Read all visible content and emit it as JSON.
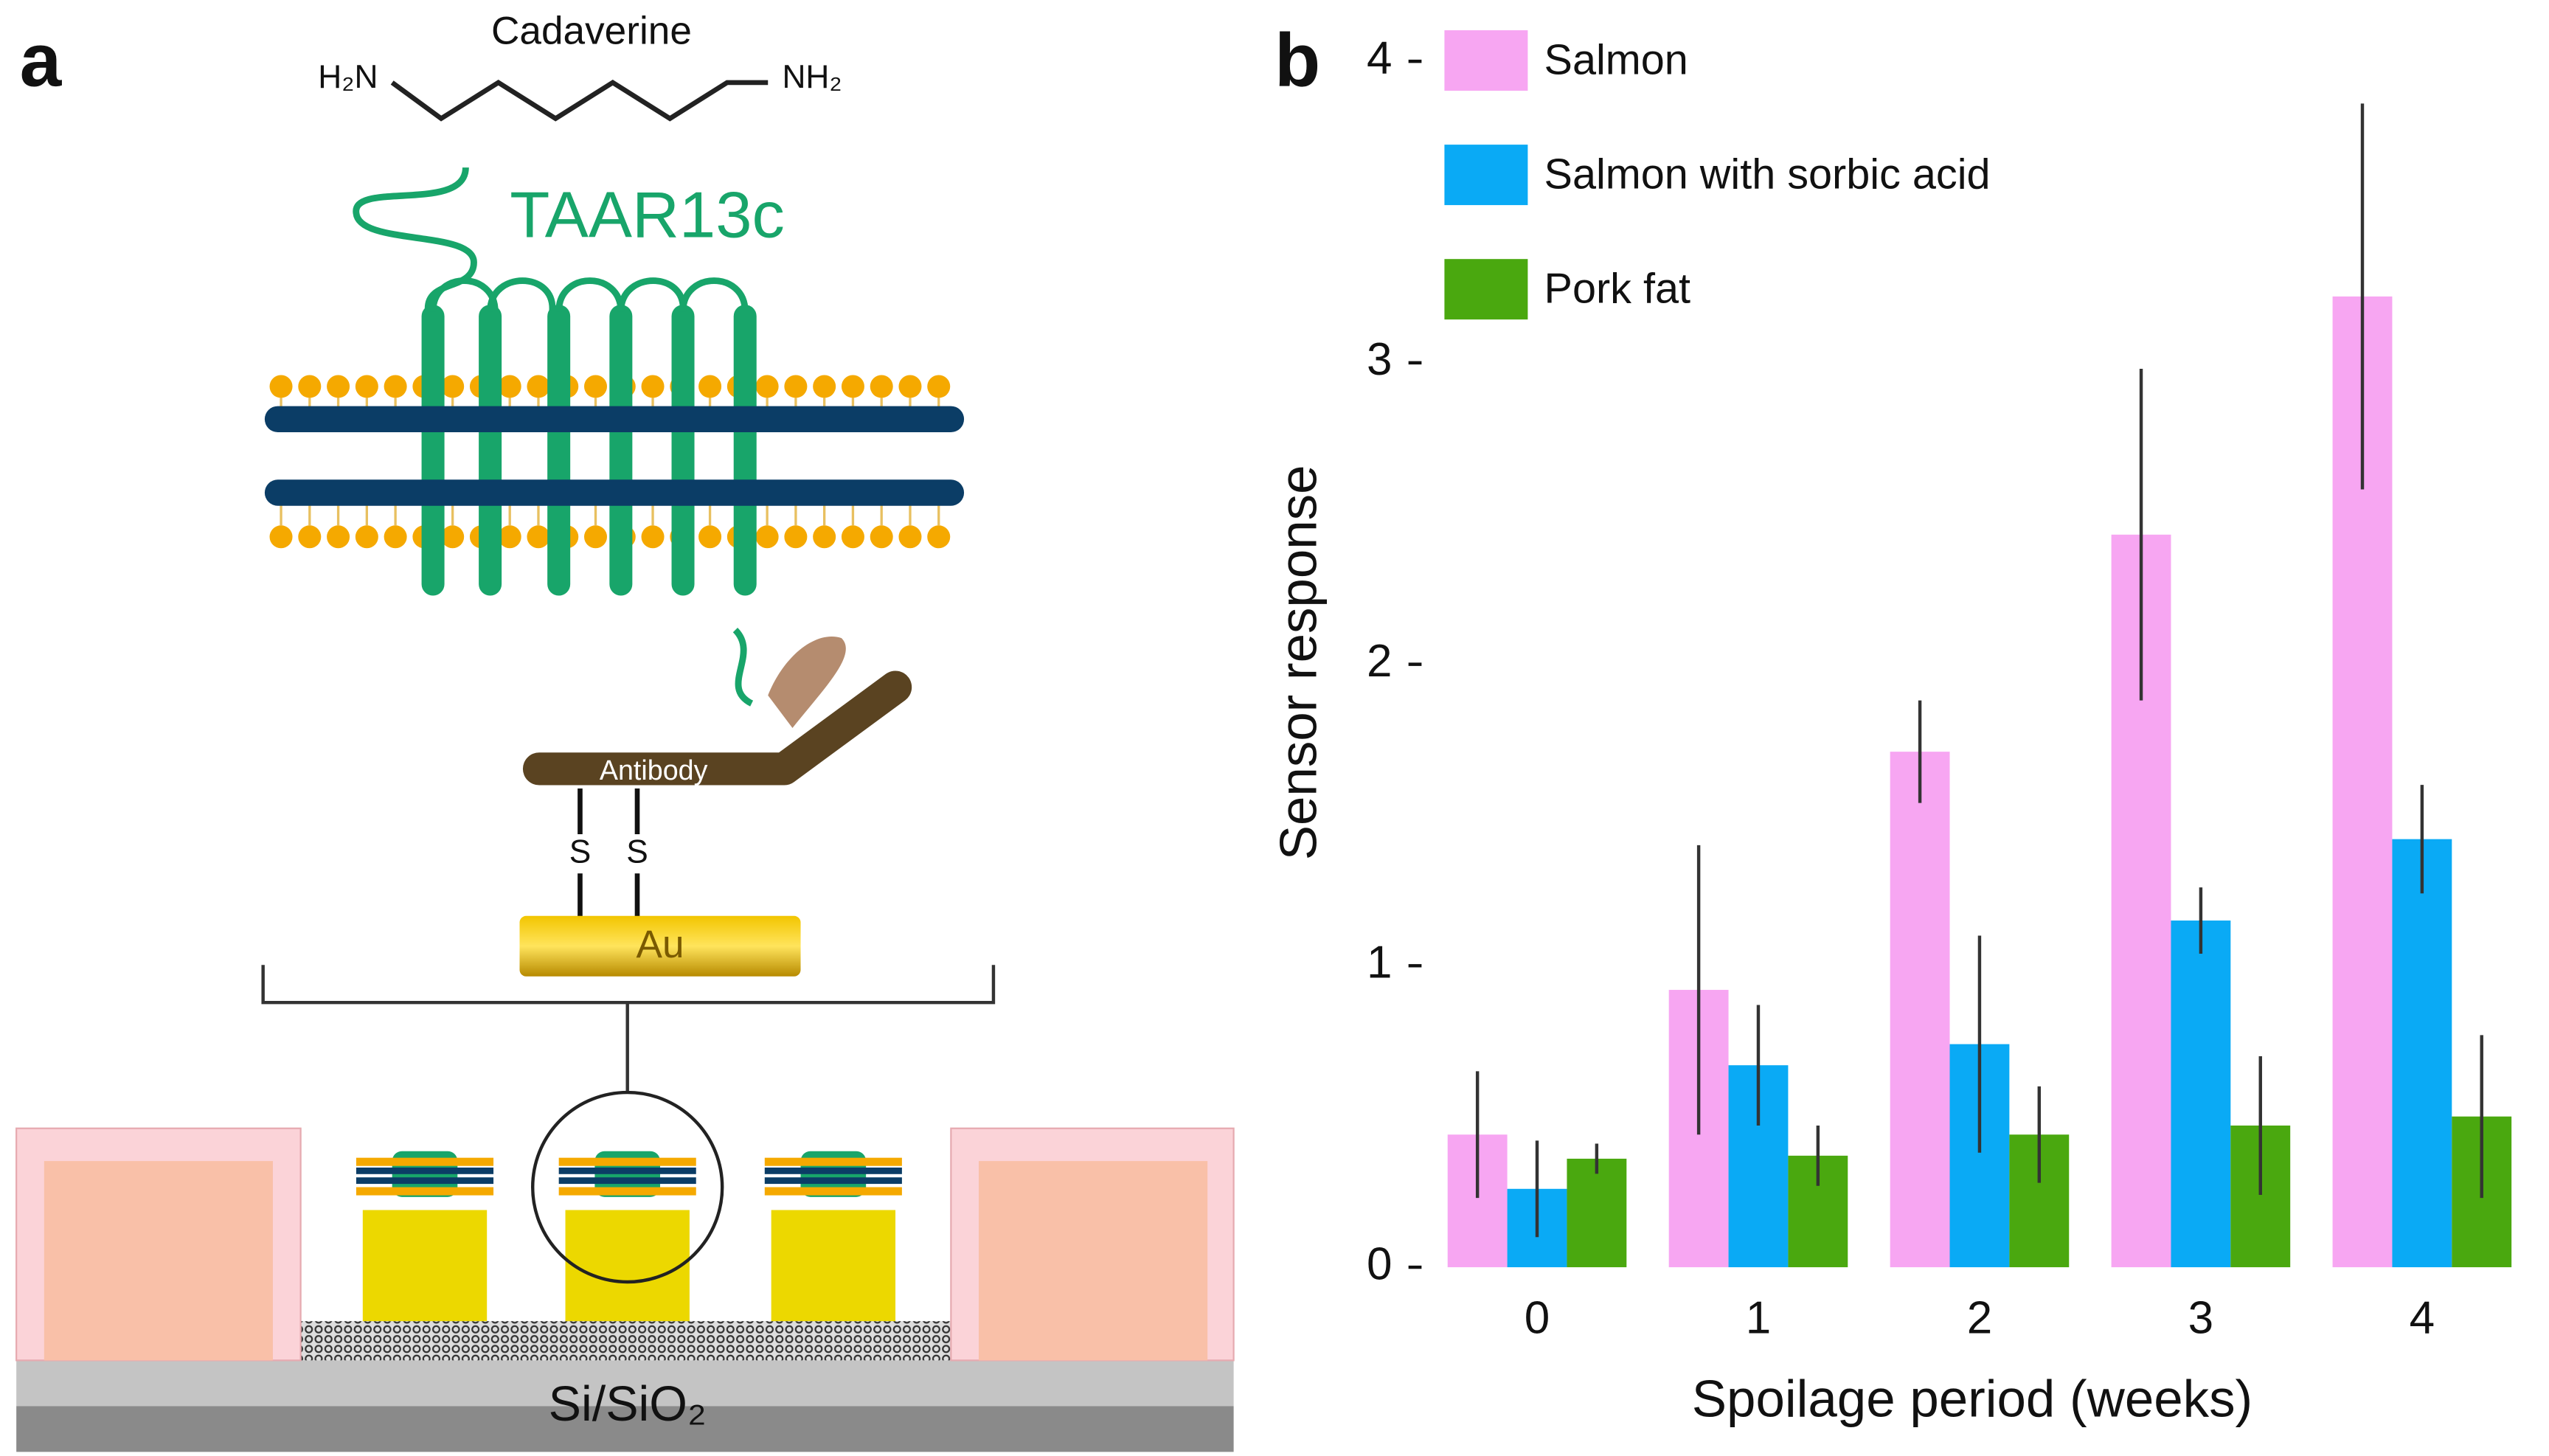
{
  "panels": {
    "a": "a",
    "b": "b"
  },
  "diagram": {
    "molecule": "Cadaverine",
    "amine_left": "H₂N",
    "amine_right": "NH₂",
    "receptor": "TAAR13c",
    "antibody": "Antibody",
    "sulfur_left": "S",
    "sulfur_right": "S",
    "gold": "Au",
    "substrate": "Si/SiO₂"
  },
  "chart_data": {
    "type": "bar",
    "xlabel": "Spoilage period (weeks)",
    "ylabel": "Sensor response",
    "categories": [
      "0",
      "1",
      "2",
      "3",
      "4"
    ],
    "series": [
      {
        "name": "Salmon",
        "color": "#f7a6f2",
        "values": [
          0.44,
          0.92,
          1.71,
          2.43,
          3.22
        ],
        "errors": [
          0.21,
          0.48,
          0.17,
          0.55,
          0.64
        ]
      },
      {
        "name": "Salmon with sorbic acid",
        "color": "#0aaaf5",
        "values": [
          0.26,
          0.67,
          0.74,
          1.15,
          1.42
        ],
        "errors": [
          0.16,
          0.2,
          0.36,
          0.11,
          0.18
        ]
      },
      {
        "name": "Pork fat",
        "color": "#4aa80f",
        "values": [
          0.36,
          0.37,
          0.44,
          0.47,
          0.5
        ],
        "errors": [
          0.05,
          0.1,
          0.16,
          0.23,
          0.27
        ]
      }
    ],
    "ylim": [
      0,
      4
    ],
    "yticks": [
      0,
      1,
      2,
      3,
      4
    ],
    "legend": "upper left",
    "error_color": "#333333"
  }
}
